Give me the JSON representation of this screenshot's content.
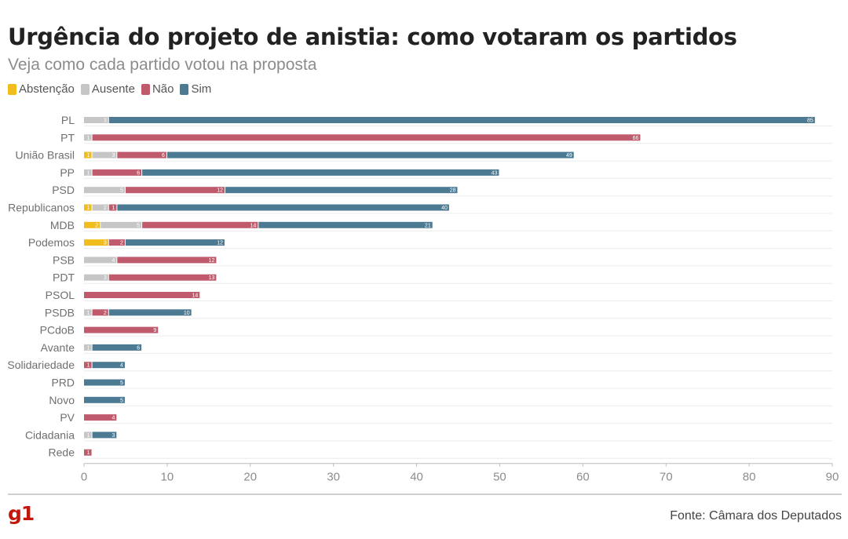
{
  "header": {
    "title": "Urgência do projeto de anistia: como votaram os partidos",
    "subtitle": "Veja como cada partido votou na proposta"
  },
  "footer": {
    "logo": "g1",
    "source": "Fonte: Câmara dos Deputados"
  },
  "colors": {
    "Abstenção": "#f0bd1c",
    "Ausente": "#c6c6c6",
    "Não": "#c05a6d",
    "Sim": "#4d7a93",
    "logo": "#c4170c"
  },
  "chart_data": {
    "type": "bar",
    "orientation": "horizontal",
    "stacked": true,
    "title": "Urgência do projeto de anistia: como votaram os partidos",
    "subtitle": "Veja como cada partido votou na proposta",
    "xlabel": "",
    "ylabel": "",
    "xlim": [
      0,
      90
    ],
    "xticks": [
      0,
      10,
      20,
      30,
      40,
      50,
      60,
      70,
      80,
      90
    ],
    "grid": "horizontal",
    "legend_position": "top-left",
    "categories": [
      "PL",
      "PT",
      "União Brasil",
      "PP",
      "PSD",
      "Republicanos",
      "MDB",
      "Podemos",
      "PSB",
      "PDT",
      "PSOL",
      "PSDB",
      "PCdoB",
      "Avante",
      "Solidariedade",
      "PRD",
      "Novo",
      "PV",
      "Cidadania",
      "Rede"
    ],
    "series": [
      {
        "name": "Abstenção",
        "values": [
          0,
          0,
          1,
          0,
          0,
          1,
          2,
          3,
          0,
          0,
          0,
          0,
          0,
          0,
          0,
          0,
          0,
          0,
          0,
          0
        ]
      },
      {
        "name": "Ausente",
        "values": [
          3,
          1,
          3,
          1,
          5,
          2,
          5,
          0,
          4,
          3,
          0,
          1,
          0,
          1,
          0,
          0,
          0,
          0,
          1,
          0
        ]
      },
      {
        "name": "Não",
        "values": [
          0,
          66,
          6,
          6,
          12,
          1,
          14,
          2,
          12,
          13,
          14,
          2,
          9,
          0,
          1,
          0,
          0,
          4,
          0,
          1
        ]
      },
      {
        "name": "Sim",
        "values": [
          85,
          0,
          49,
          43,
          28,
          40,
          21,
          12,
          0,
          0,
          0,
          10,
          0,
          6,
          4,
          5,
          5,
          0,
          3,
          0
        ]
      }
    ]
  }
}
